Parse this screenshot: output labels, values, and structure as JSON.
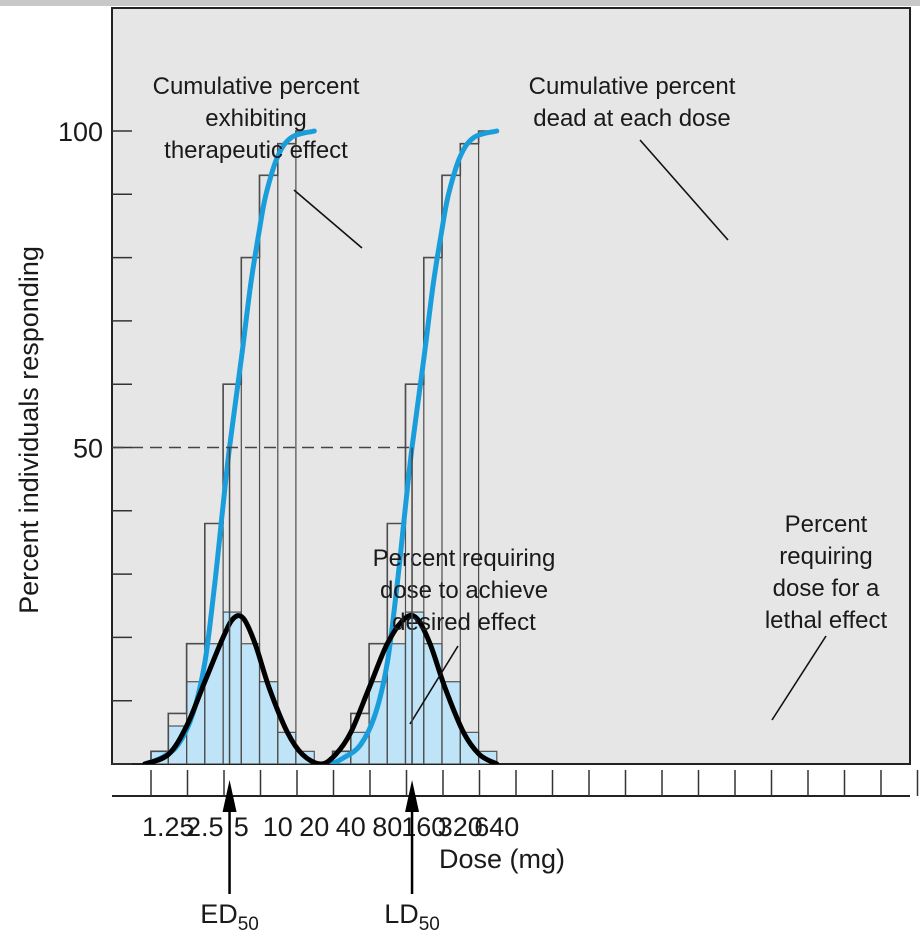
{
  "chart_data": {
    "type": "bar",
    "xlabel": "Dose (mg)",
    "ylabel": "Percent individuals responding",
    "y_ticks_labeled": [
      50,
      100
    ],
    "ylim": [
      0,
      100
    ],
    "x_tick_labels": [
      "1.25",
      "2.5",
      "5",
      "10",
      "20",
      "40",
      "80",
      "160",
      "320",
      "640"
    ],
    "x_scale": "log2",
    "reference_line": {
      "y": 50,
      "style": "dashed"
    },
    "series": [
      {
        "kind": "histogram",
        "dose_bins": [
          [
            0.9,
            1.25,
            2
          ],
          [
            1.25,
            1.77,
            6
          ],
          [
            1.77,
            2.5,
            13
          ],
          [
            2.5,
            3.54,
            19
          ],
          [
            3.54,
            5,
            24
          ],
          [
            5,
            7.07,
            19
          ],
          [
            7.07,
            10,
            13
          ],
          [
            10,
            14.1,
            5
          ],
          [
            14.1,
            20,
            2
          ],
          [
            28.3,
            40,
            2
          ],
          [
            40,
            56.6,
            5
          ],
          [
            56.6,
            80,
            13
          ],
          [
            80,
            113,
            19
          ],
          [
            113,
            160,
            24
          ],
          [
            160,
            226,
            19
          ],
          [
            226,
            320,
            13
          ],
          [
            320,
            453,
            5
          ],
          [
            453,
            640,
            2
          ]
        ]
      },
      {
        "kind": "step",
        "points": [
          [
            0.9,
            0
          ],
          [
            0.9,
            2
          ],
          [
            1.25,
            2
          ],
          [
            1.25,
            8
          ],
          [
            1.77,
            8
          ],
          [
            1.77,
            19
          ],
          [
            2.5,
            19
          ],
          [
            2.5,
            38
          ],
          [
            3.54,
            38
          ],
          [
            3.54,
            60
          ],
          [
            5,
            60
          ],
          [
            5,
            80
          ],
          [
            7.07,
            80
          ],
          [
            7.07,
            93
          ],
          [
            10,
            93
          ],
          [
            10,
            98
          ],
          [
            14.1,
            98
          ],
          [
            14.1,
            100
          ],
          [
            20,
            100
          ]
        ]
      },
      {
        "kind": "step",
        "points": [
          [
            28.3,
            0
          ],
          [
            28.3,
            2
          ],
          [
            40,
            2
          ],
          [
            40,
            8
          ],
          [
            56.6,
            8
          ],
          [
            56.6,
            19
          ],
          [
            80,
            19
          ],
          [
            80,
            38
          ],
          [
            113,
            38
          ],
          [
            113,
            60
          ],
          [
            160,
            60
          ],
          [
            160,
            80
          ],
          [
            226,
            80
          ],
          [
            226,
            93
          ],
          [
            320,
            93
          ],
          [
            320,
            98
          ],
          [
            453,
            98
          ],
          [
            453,
            100
          ],
          [
            640,
            100
          ]
        ]
      },
      {
        "kind": "curve",
        "points": [
          [
            0.8,
            0
          ],
          [
            1.1,
            1
          ],
          [
            1.5,
            3
          ],
          [
            2,
            8
          ],
          [
            2.5,
            16
          ],
          [
            3,
            28
          ],
          [
            3.5,
            40
          ],
          [
            4,
            50
          ],
          [
            5,
            64
          ],
          [
            6,
            76
          ],
          [
            7,
            84
          ],
          [
            8,
            90
          ],
          [
            10,
            96
          ],
          [
            13,
            99
          ],
          [
            20,
            100
          ]
        ]
      },
      {
        "kind": "curve",
        "points": [
          [
            28,
            0
          ],
          [
            35,
            1
          ],
          [
            48,
            3
          ],
          [
            64,
            8
          ],
          [
            80,
            16
          ],
          [
            96,
            28
          ],
          [
            112,
            40
          ],
          [
            128,
            50
          ],
          [
            160,
            64
          ],
          [
            192,
            76
          ],
          [
            224,
            84
          ],
          [
            256,
            90
          ],
          [
            320,
            96
          ],
          [
            416,
            99
          ],
          [
            640,
            100
          ]
        ]
      },
      {
        "kind": "curve",
        "points": [
          [
            0.8,
            0
          ],
          [
            1.25,
            1.5
          ],
          [
            1.77,
            6
          ],
          [
            2.5,
            13
          ],
          [
            3.54,
            20
          ],
          [
            4.3,
            23
          ],
          [
            5.2,
            23
          ],
          [
            6.5,
            19
          ],
          [
            8.5,
            12
          ],
          [
            12,
            5
          ],
          [
            16,
            1.5
          ],
          [
            22.6,
            0
          ],
          [
            30,
            1.5
          ],
          [
            40,
            5
          ],
          [
            56.6,
            12
          ],
          [
            80,
            19
          ],
          [
            112,
            23
          ],
          [
            140,
            23
          ],
          [
            180,
            19
          ],
          [
            240,
            12
          ],
          [
            340,
            5
          ],
          [
            460,
            1.5
          ],
          [
            640,
            0
          ]
        ]
      }
    ],
    "annotations": [
      {
        "lines": [
          "Cumulative percent",
          "exhibiting",
          "therapeutic effect"
        ]
      },
      {
        "lines": [
          "Cumulative percent",
          "dead at each dose"
        ]
      },
      {
        "lines": [
          "Percent requiring",
          "dose to achieve",
          "desired effect"
        ]
      },
      {
        "lines": [
          "Percent",
          "requiring",
          "dose for a",
          "lethal effect"
        ]
      }
    ],
    "markers": [
      {
        "label": "ED",
        "sub": "50",
        "dose": 4
      },
      {
        "label": "LD",
        "sub": "50",
        "dose": 128
      }
    ],
    "colors": {
      "plot_bg": "#e6e6e6",
      "bar_fill": "#bfe3f7",
      "step_line": "#4d4d4d",
      "cumulative_curve": "#1a9ddb",
      "distribution_curve": "#000000"
    }
  }
}
